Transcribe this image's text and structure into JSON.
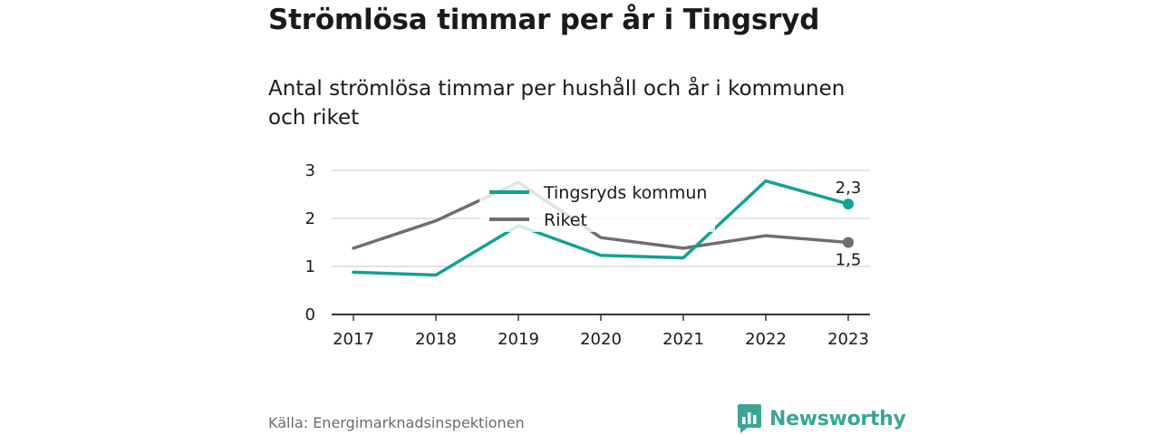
{
  "header": {
    "title": "Strömlösa timmar per år i Tingsryd",
    "subtitle": "Antal strömlösa timmar per hushåll och år i kommunen och riket"
  },
  "footer": {
    "source": "Källa: Energimarknadsinspektionen",
    "brand": "Newsworthy",
    "brand_icon": "bar-chart-speech-bubble-icon",
    "brand_color": "#3aa596"
  },
  "chart_data": {
    "type": "line",
    "title": "Strömlösa timmar per år i Tingsryd",
    "subtitle": "Antal strömlösa timmar per hushåll och år i kommunen och riket",
    "xlabel": "",
    "ylabel": "",
    "x": [
      "2017",
      "2018",
      "2019",
      "2020",
      "2021",
      "2022",
      "2023"
    ],
    "yticks": [
      0,
      1,
      2,
      3
    ],
    "ylim": [
      0,
      3
    ],
    "grid": true,
    "legend_position": "top-center",
    "series": [
      {
        "name": "Tingsryds kommun",
        "color": "#12a195",
        "values": [
          0.88,
          0.82,
          1.85,
          1.23,
          1.18,
          2.78,
          2.3
        ],
        "end_label": "2,3"
      },
      {
        "name": "Riket",
        "color": "#6e6d73",
        "values": [
          1.38,
          1.95,
          2.75,
          1.6,
          1.38,
          1.64,
          1.5
        ],
        "end_label": "1,5"
      }
    ]
  }
}
